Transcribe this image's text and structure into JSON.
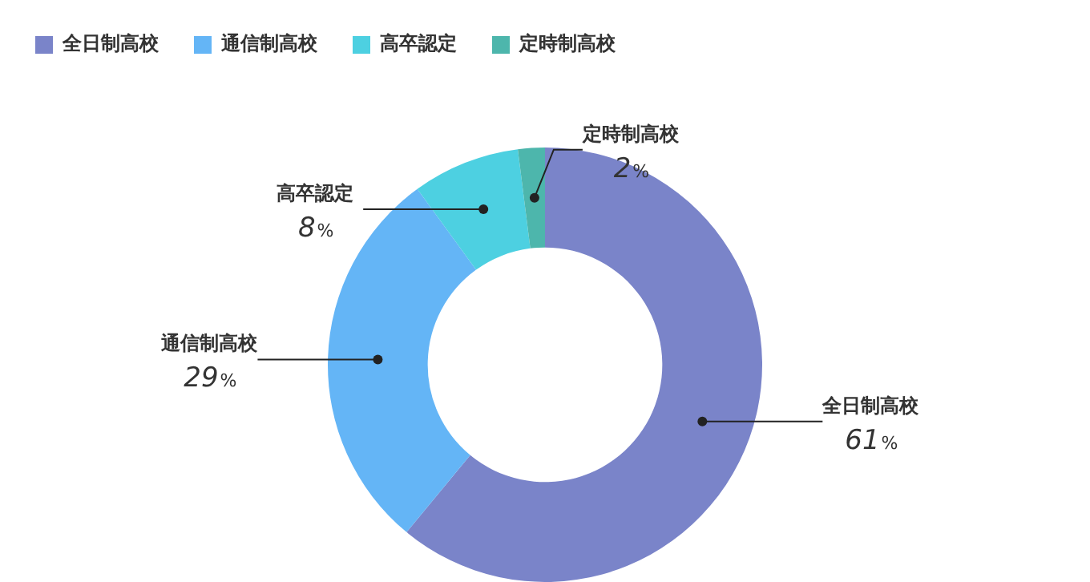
{
  "chart_data": {
    "type": "donut",
    "categories": [
      "全日制高校",
      "通信制高校",
      "高卒認定",
      "定時制高校"
    ],
    "values": [
      61,
      29,
      8,
      2
    ],
    "colors": [
      "#7a84c9",
      "#64b5f6",
      "#4dd0e1",
      "#4db6ac"
    ],
    "value_labels": [
      "61%",
      "29%",
      "8%",
      "2%"
    ],
    "legend": "top left"
  }
}
